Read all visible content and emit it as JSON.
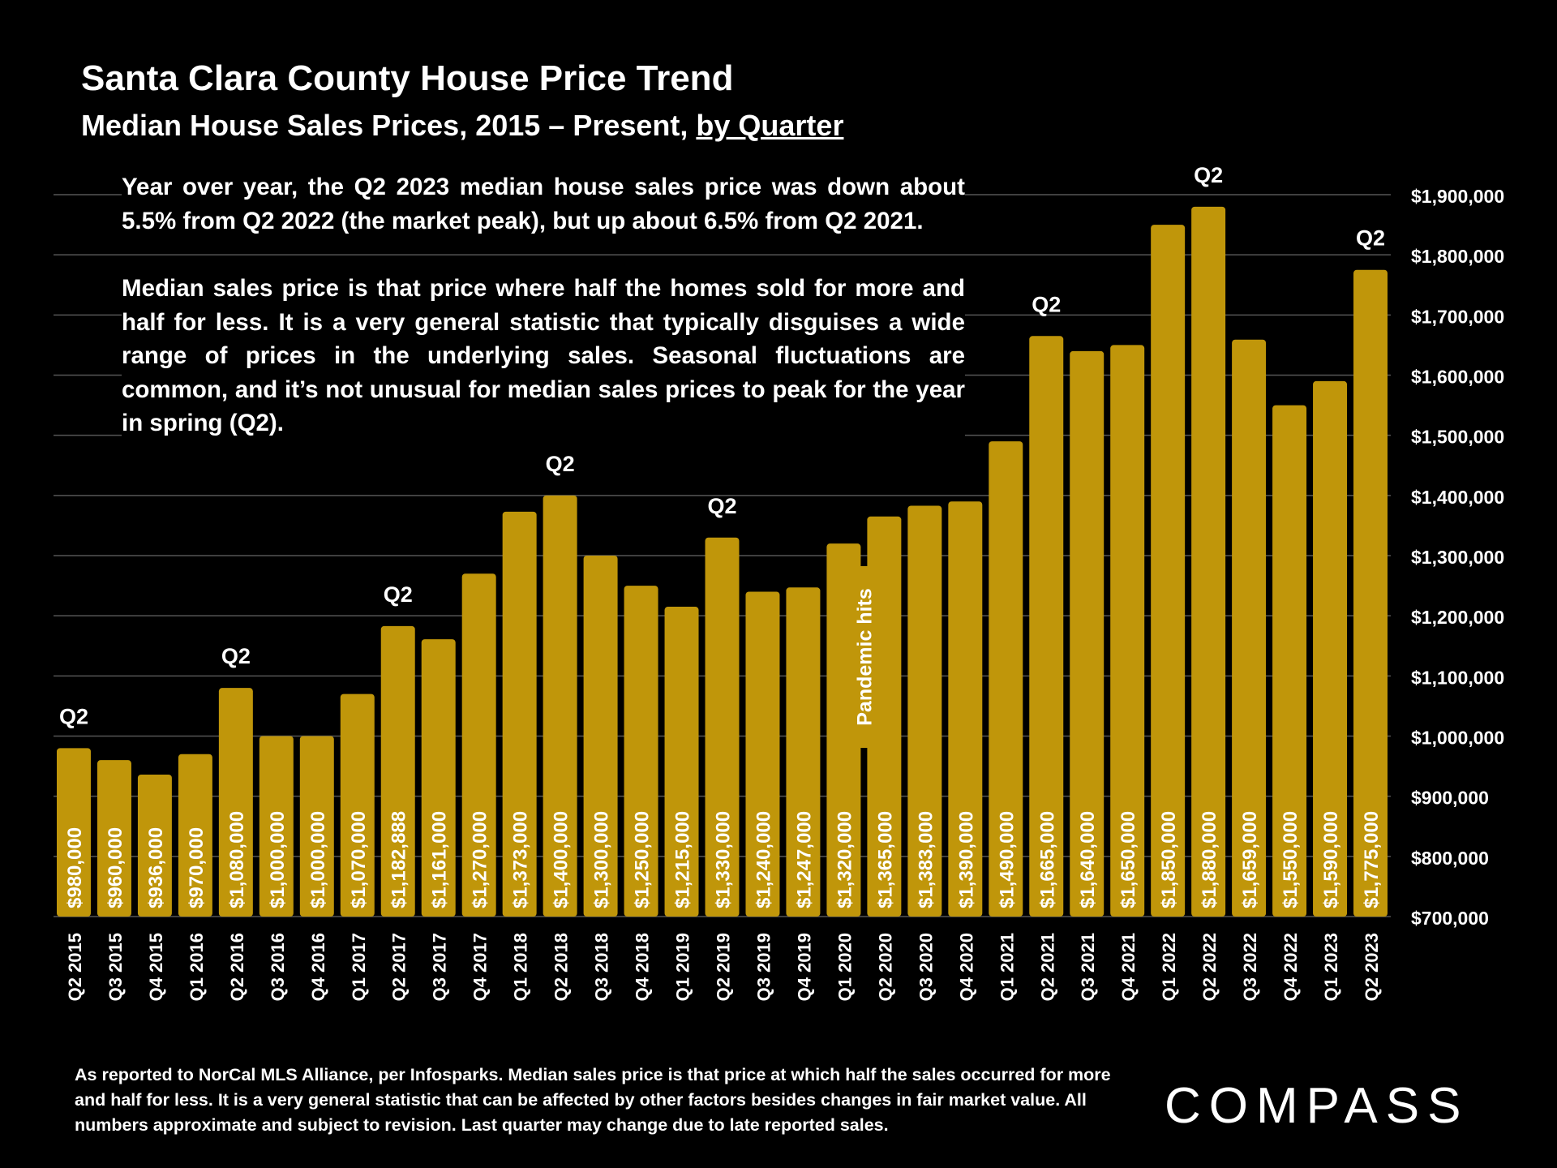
{
  "header": {
    "title": "Santa Clara County House Price Trend",
    "subtitle_prefix": "Median House Sales Prices, 2015 – Present, ",
    "subtitle_underlined": "by Quarter"
  },
  "notes": {
    "paragraph1": "Year over year, the Q2 2023 median house sales price was down about 5.5% from Q2 2022 (the market peak), but up about 6.5% from Q2 2021.",
    "paragraph2": "Median sales price is that price where half the homes sold for more and half for less. It is a very general statistic that typically disguises a wide range of prices in the underlying sales. Seasonal fluctuations are common, and it’s not unusual for median sales prices to peak for the year in spring (Q2)."
  },
  "footnote": "As reported to NorCal MLS Alliance, per Infosparks. Median sales price is that price at which half the sales occurred for more and half for less. It is a very general statistic that can be affected by other factors besides changes in fair market value. All numbers approximate and subject to revision. Last quarter may change due to late reported sales.",
  "logo": "COMPASS",
  "colors": {
    "bar": "#C0960A",
    "background": "#000000",
    "grid": "#555555",
    "text": "#FFFFFF"
  },
  "chart_data": {
    "type": "bar",
    "title": "Santa Clara County House Price Trend",
    "subtitle": "Median House Sales Prices, 2015 – Present, by Quarter",
    "xlabel": "",
    "ylabel": "",
    "ylim": [
      700000,
      1900000
    ],
    "ytick_values": [
      700000,
      800000,
      900000,
      1000000,
      1100000,
      1200000,
      1300000,
      1400000,
      1500000,
      1600000,
      1700000,
      1800000,
      1900000
    ],
    "ytick_labels": [
      "$700,000",
      "$800,000",
      "$900,000",
      "$1,000,000",
      "$1,100,000",
      "$1,200,000",
      "$1,300,000",
      "$1,400,000",
      "$1,500,000",
      "$1,600,000",
      "$1,700,000",
      "$1,800,000",
      "$1,900,000"
    ],
    "y_axis_side": "right",
    "grid": true,
    "categories": [
      "Q2 2015",
      "Q3 2015",
      "Q4 2015",
      "Q1 2016",
      "Q2 2016",
      "Q3 2016",
      "Q4 2016",
      "Q1 2017",
      "Q2 2017",
      "Q3 2017",
      "Q4 2017",
      "Q1 2018",
      "Q2 2018",
      "Q3 2018",
      "Q4 2018",
      "Q1 2019",
      "Q2 2019",
      "Q3 2019",
      "Q4 2019",
      "Q1 2020",
      "Q2 2020",
      "Q3 2020",
      "Q4 2020",
      "Q1 2021",
      "Q2 2021",
      "Q3 2021",
      "Q4 2021",
      "Q1 2022",
      "Q2 2022",
      "Q3 2022",
      "Q4 2022",
      "Q1 2023",
      "Q2 2023"
    ],
    "values": [
      980000,
      960000,
      936000,
      970000,
      1080000,
      1000000,
      1000000,
      1070000,
      1182888,
      1161000,
      1270000,
      1373000,
      1400000,
      1300000,
      1250000,
      1215000,
      1330000,
      1240000,
      1247000,
      1320000,
      1365000,
      1383000,
      1390000,
      1490000,
      1665000,
      1640000,
      1650000,
      1850000,
      1880000,
      1659000,
      1550000,
      1590000,
      1775000
    ],
    "value_labels": [
      "$980,000",
      "$960,000",
      "$936,000",
      "$970,000",
      "$1,080,000",
      "$1,000,000",
      "$1,000,000",
      "$1,070,000",
      "$1,182,888",
      "$1,161,000",
      "$1,270,000",
      "$1,373,000",
      "$1,400,000",
      "$1,300,000",
      "$1,250,000",
      "$1,215,000",
      "$1,330,000",
      "$1,240,000",
      "$1,247,000",
      "$1,320,000",
      "$1,365,000",
      "$1,383,000",
      "$1,390,000",
      "$1,490,000",
      "$1,665,000",
      "$1,640,000",
      "$1,650,000",
      "$1,850,000",
      "$1,880,000",
      "$1,659,000",
      "$1,550,000",
      "$1,590,000",
      "$1,775,000"
    ],
    "annotations": [
      {
        "category_index": 0,
        "text": "Q2"
      },
      {
        "category_index": 4,
        "text": "Q2"
      },
      {
        "category_index": 8,
        "text": "Q2"
      },
      {
        "category_index": 12,
        "text": "Q2"
      },
      {
        "category_index": 16,
        "text": "Q2"
      },
      {
        "category_index": 24,
        "text": "Q2"
      },
      {
        "category_index": 28,
        "text": "Q2"
      },
      {
        "category_index": 32,
        "text": "Q2"
      }
    ],
    "event_annotation": {
      "category_index": 19,
      "text": "Pandemic hits"
    }
  }
}
